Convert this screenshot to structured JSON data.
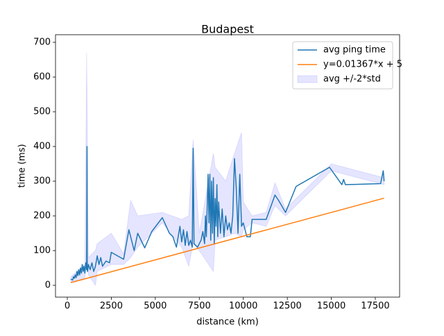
{
  "chart_data": {
    "type": "line",
    "title": "Budapest",
    "xlabel": "distance (km)",
    "ylabel": "time (ms)",
    "xlim": [
      -670,
      18880
    ],
    "ylim": [
      -34,
      722
    ],
    "xticks": [
      0,
      2500,
      5000,
      7500,
      10000,
      12500,
      15000,
      17500
    ],
    "yticks": [
      0,
      100,
      200,
      300,
      400,
      500,
      600,
      700
    ],
    "legend": "upper right",
    "series": [
      {
        "name": "avg ping time",
        "color": "#1f77b4",
        "kind": "line",
        "x": [
          200,
          300,
          350,
          400,
          450,
          500,
          550,
          600,
          650,
          700,
          750,
          800,
          850,
          900,
          950,
          1000,
          1050,
          1100,
          1120,
          1130,
          1150,
          1200,
          1300,
          1400,
          1500,
          1600,
          1700,
          1800,
          1900,
          2000,
          2200,
          2400,
          2500,
          3200,
          3500,
          3800,
          4000,
          4400,
          4800,
          5400,
          5800,
          6000,
          6200,
          6400,
          6500,
          6600,
          6700,
          6800,
          6900,
          7000,
          7100,
          7150,
          7200,
          7400,
          7600,
          7700,
          7800,
          7850,
          7900,
          8000,
          8050,
          8100,
          8150,
          8200,
          8250,
          8300,
          8350,
          8400,
          8450,
          8500,
          8550,
          8600,
          8700,
          8800,
          8900,
          9000,
          9100,
          9200,
          9300,
          9400,
          9500,
          9600,
          9700,
          9800,
          9900,
          10000,
          10200,
          10400,
          10500,
          11300,
          11800,
          12000,
          12400,
          12800,
          13000,
          14900,
          15600,
          15700,
          15800,
          17800,
          17950,
          18000
        ],
        "values": [
          18,
          15,
          25,
          20,
          30,
          22,
          40,
          28,
          45,
          30,
          50,
          35,
          60,
          40,
          55,
          35,
          65,
          45,
          400,
          50,
          40,
          60,
          45,
          65,
          40,
          55,
          85,
          60,
          80,
          55,
          70,
          65,
          95,
          75,
          160,
          100,
          150,
          108,
          155,
          195,
          150,
          140,
          110,
          170,
          125,
          160,
          115,
          155,
          115,
          130,
          110,
          395,
          120,
          110,
          130,
          155,
          120,
          200,
          140,
          320,
          180,
          320,
          130,
          300,
          150,
          310,
          120,
          250,
          170,
          290,
          140,
          240,
          150,
          220,
          140,
          200,
          160,
          180,
          150,
          200,
          365,
          280,
          150,
          320,
          170,
          180,
          140,
          140,
          190,
          190,
          260,
          245,
          210,
          260,
          285,
          340,
          290,
          305,
          290,
          293,
          330,
          300
        ]
      },
      {
        "name": "y=0.01367*x + 5",
        "color": "#ff7f0e",
        "kind": "line",
        "x": [
          200,
          18000
        ],
        "values": [
          7.7,
          251.1
        ]
      },
      {
        "name": "avg +/-2*std",
        "color": "#0000ff",
        "alpha": 0.1,
        "kind": "band",
        "x": [
          200,
          1000,
          1100,
          1200,
          1600,
          1700,
          2500,
          3200,
          3600,
          4000,
          5400,
          6500,
          6900,
          7150,
          7500,
          8300,
          8400,
          9000,
          9500,
          9900,
          10000,
          10500,
          11300,
          11800,
          12400,
          15000,
          18000
        ],
        "lower": [
          10,
          20,
          120,
          30,
          0,
          40,
          60,
          60,
          80,
          110,
          180,
          110,
          55,
          120,
          100,
          40,
          130,
          140,
          150,
          140,
          160,
          180,
          170,
          230,
          200,
          330,
          290
        ],
        "upper": [
          25,
          60,
          670,
          80,
          100,
          120,
          150,
          90,
          245,
          200,
          210,
          190,
          200,
          420,
          150,
          380,
          340,
          300,
          380,
          440,
          240,
          200,
          210,
          295,
          220,
          350,
          310
        ]
      }
    ]
  }
}
